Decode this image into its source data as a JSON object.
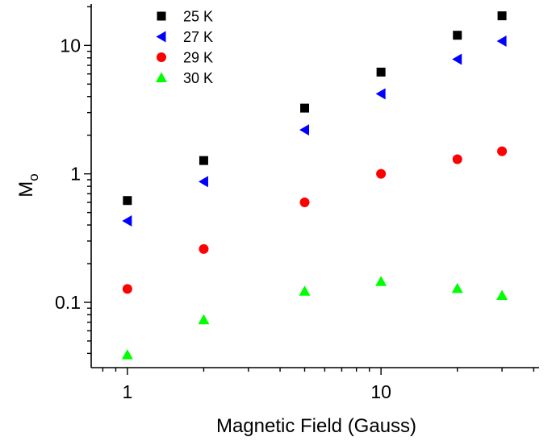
{
  "chart_data": {
    "type": "scatter",
    "xscale": "log",
    "yscale": "log",
    "xlim": [
      0.72,
      42
    ],
    "ylim": [
      0.031,
      21
    ],
    "x": [
      1,
      2,
      5,
      10,
      20,
      30
    ],
    "xlabel": "Magnetic Field (Gauss)",
    "ylabel_main": "M",
    "ylabel_sub": "o",
    "xticks": [
      1,
      10
    ],
    "xtick_labels": [
      "1",
      "10"
    ],
    "yticks": [
      0.1,
      1,
      10
    ],
    "ytick_labels": [
      "0.1",
      "1",
      "10"
    ],
    "grid": false,
    "legend_position": "top-left",
    "series": [
      {
        "name": "25 K",
        "marker": "square",
        "color": "#000000",
        "values": [
          0.62,
          1.27,
          3.25,
          6.2,
          12.0,
          17.0
        ]
      },
      {
        "name": "27 K",
        "marker": "triangle-left",
        "color": "#0000ff",
        "values": [
          0.43,
          0.87,
          2.2,
          4.2,
          7.8,
          10.8
        ]
      },
      {
        "name": "29 K",
        "marker": "circle",
        "color": "#ff0000",
        "values": [
          0.127,
          0.26,
          0.6,
          1.0,
          1.3,
          1.5
        ]
      },
      {
        "name": "30 K",
        "marker": "triangle-up",
        "color": "#00ff00",
        "values": [
          0.039,
          0.073,
          0.122,
          0.145,
          0.128,
          0.113
        ]
      }
    ]
  }
}
